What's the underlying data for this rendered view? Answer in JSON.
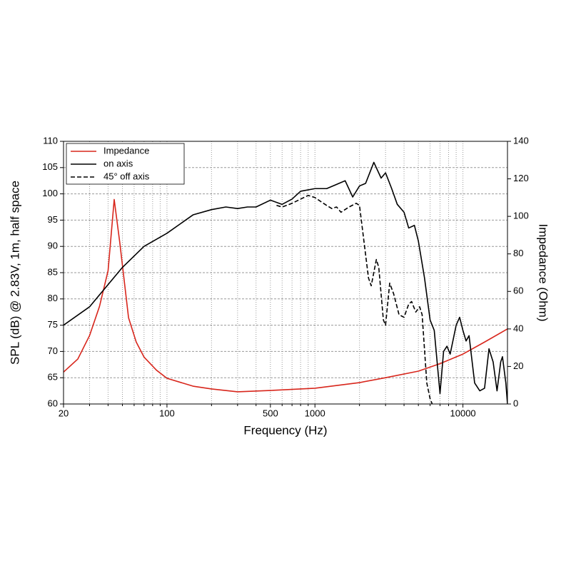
{
  "chart_data": {
    "type": "line",
    "xlabel": "Frequency (Hz)",
    "ylabel": "SPL (dB) @ 2.83V, 1m, half space",
    "y2label": "Impedance (Ohm)",
    "xscale": "log",
    "xlim": [
      20,
      20000
    ],
    "xticks": [
      20,
      100,
      500,
      1000,
      10000
    ],
    "minor_xticks": [
      30,
      40,
      50,
      60,
      70,
      80,
      90,
      200,
      300,
      400,
      600,
      700,
      800,
      900,
      2000,
      3000,
      4000,
      5000,
      6000,
      7000,
      8000,
      9000
    ],
    "ylim": [
      60,
      110
    ],
    "yticks": [
      60,
      65,
      70,
      75,
      80,
      85,
      90,
      95,
      100,
      105,
      110
    ],
    "y2lim": [
      0,
      140
    ],
    "y2ticks": [
      0,
      20,
      40,
      60,
      80,
      100,
      120,
      140
    ],
    "grid": true,
    "legend": "upper left",
    "series": [
      {
        "name": "Impedance",
        "color": "#d8261c",
        "axis": "y2",
        "dash": "solid",
        "x": [
          20,
          25,
          30,
          35,
          40,
          44,
          48,
          55,
          62,
          70,
          85,
          100,
          150,
          200,
          300,
          500,
          1000,
          2000,
          3000,
          5000,
          7000,
          10000,
          14000,
          20000
        ],
        "values": [
          17,
          24,
          36.5,
          52,
          71,
          109,
          86,
          46,
          33,
          25,
          18,
          13.7,
          9.5,
          8,
          6.5,
          7.2,
          8.4,
          11.4,
          14,
          17.5,
          21.5,
          26.6,
          33,
          40
        ]
      },
      {
        "name": "on axis",
        "color": "#000000",
        "dash": "solid",
        "x": [
          20,
          30,
          50,
          70,
          100,
          150,
          200,
          250,
          300,
          350,
          400,
          500,
          600,
          700,
          800,
          1000,
          1200,
          1400,
          1600,
          1800,
          2000,
          2200,
          2500,
          2800,
          3000,
          3300,
          3600,
          4000,
          4300,
          4700,
          5000,
          5500,
          6000,
          6400,
          7000,
          7400,
          7800,
          8200,
          9000,
          9500,
          10000,
          10500,
          11000,
          12000,
          13000,
          14000,
          15000,
          16000,
          17000,
          18000,
          18500,
          19500,
          20000
        ],
        "values": [
          75,
          78.5,
          86,
          90,
          92.5,
          96,
          97,
          97.5,
          97.2,
          97.5,
          97.5,
          98.8,
          98,
          99,
          100.5,
          101,
          101,
          101.8,
          102.5,
          99.4,
          101.5,
          102,
          106,
          103,
          104,
          101,
          98,
          96.5,
          93.5,
          94,
          91,
          84,
          76,
          74,
          62,
          70,
          71,
          69.5,
          75,
          76.5,
          74,
          72,
          73,
          64,
          62.5,
          63,
          70.5,
          68,
          62.5,
          68,
          69,
          64,
          60
        ]
      },
      {
        "name": "45° off axis",
        "color": "#000000",
        "dash": "dashed",
        "x": [
          550,
          600,
          700,
          800,
          900,
          1000,
          1100,
          1200,
          1300,
          1400,
          1500,
          1700,
          1900,
          2000,
          2100,
          2300,
          2400,
          2600,
          2700,
          2900,
          3000,
          3200,
          3400,
          3700,
          4000,
          4300,
          4500,
          4800,
          5100,
          5300,
          5700,
          6000,
          6200
        ],
        "values": [
          97.8,
          97.5,
          98.2,
          99,
          99.7,
          99.3,
          98.5,
          97.8,
          97.2,
          97.5,
          96.5,
          97.5,
          98.2,
          97.8,
          93,
          84,
          82.5,
          87.5,
          86,
          76,
          75,
          83,
          81,
          77,
          76.5,
          79,
          79.5,
          77.5,
          78.5,
          77,
          64,
          61,
          60
        ]
      }
    ]
  }
}
